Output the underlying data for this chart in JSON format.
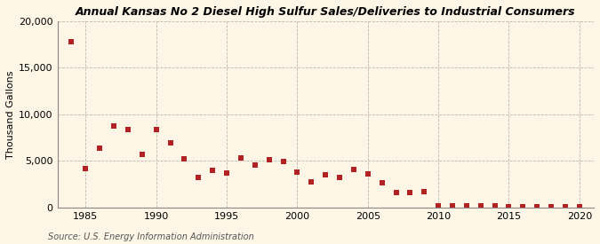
{
  "title": "Annual Kansas No 2 Diesel High Sulfur Sales/Deliveries to Industrial Consumers",
  "ylabel": "Thousand Gallons",
  "source": "Source: U.S. Energy Information Administration",
  "background_color": "#fdf5e6",
  "plot_background_color": "#fdf5e6",
  "marker_color": "#b22222",
  "marker": "s",
  "marker_size": 4,
  "xlim": [
    1983,
    2021
  ],
  "ylim": [
    0,
    20000
  ],
  "yticks": [
    0,
    5000,
    10000,
    15000,
    20000
  ],
  "xticks": [
    1985,
    1990,
    1995,
    2000,
    2005,
    2010,
    2015,
    2020
  ],
  "years": [
    1984,
    1985,
    1986,
    1987,
    1988,
    1989,
    1990,
    1991,
    1992,
    1993,
    1994,
    1995,
    1996,
    1997,
    1998,
    1999,
    2000,
    2001,
    2002,
    2003,
    2004,
    2005,
    2006,
    2007,
    2008,
    2009,
    2010,
    2011,
    2012,
    2013,
    2014,
    2015,
    2016,
    2017,
    2018,
    2019,
    2020
  ],
  "values": [
    17800,
    4200,
    6400,
    8800,
    8400,
    5700,
    8400,
    6900,
    5200,
    3200,
    4000,
    3700,
    5300,
    4600,
    5100,
    4900,
    3800,
    2800,
    3500,
    3200,
    4100,
    3600,
    2700,
    1600,
    1600,
    1700,
    200,
    200,
    200,
    150,
    200,
    100,
    100,
    100,
    100,
    100,
    50
  ]
}
